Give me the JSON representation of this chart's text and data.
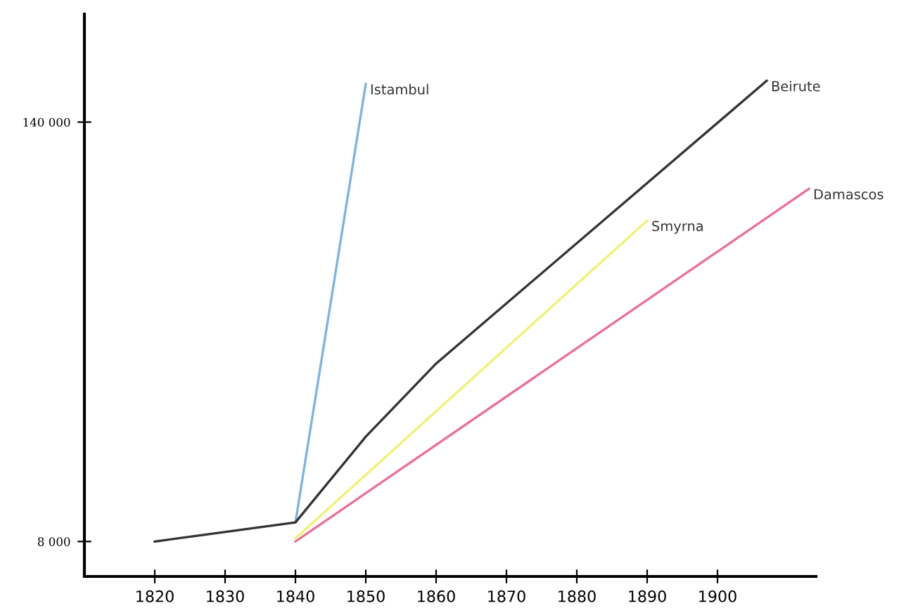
{
  "chart_data": {
    "type": "line",
    "series": [
      {
        "name": "Istambul",
        "color": "#7fb3dd",
        "x": [
          1840,
          1850
        ],
        "values": [
          14000,
          152000
        ]
      },
      {
        "name": "Beirute",
        "color": "#333333",
        "x": [
          1820,
          1840,
          1850,
          1860,
          1907
        ],
        "values": [
          8000,
          14000,
          41000,
          64000,
          153000
        ]
      },
      {
        "name": "Smyrna",
        "color": "#f0f07a",
        "x": [
          1840,
          1890
        ],
        "values": [
          9000,
          109000
        ]
      },
      {
        "name": "Damascos",
        "color": "#e8709a",
        "x": [
          1840,
          1913
        ],
        "values": [
          8000,
          119000
        ]
      }
    ],
    "xlim": [
      1810,
      1914
    ],
    "ylim": [
      -3000,
      174000
    ],
    "xticks": [
      1820,
      1830,
      1840,
      1850,
      1860,
      1870,
      1880,
      1890,
      1900
    ],
    "yticks": [
      {
        "value": 8000,
        "label": "8 000"
      },
      {
        "value": 140000,
        "label": "140 000"
      }
    ],
    "grid": false,
    "legend": false,
    "marker": "none",
    "line_style": "solid"
  }
}
